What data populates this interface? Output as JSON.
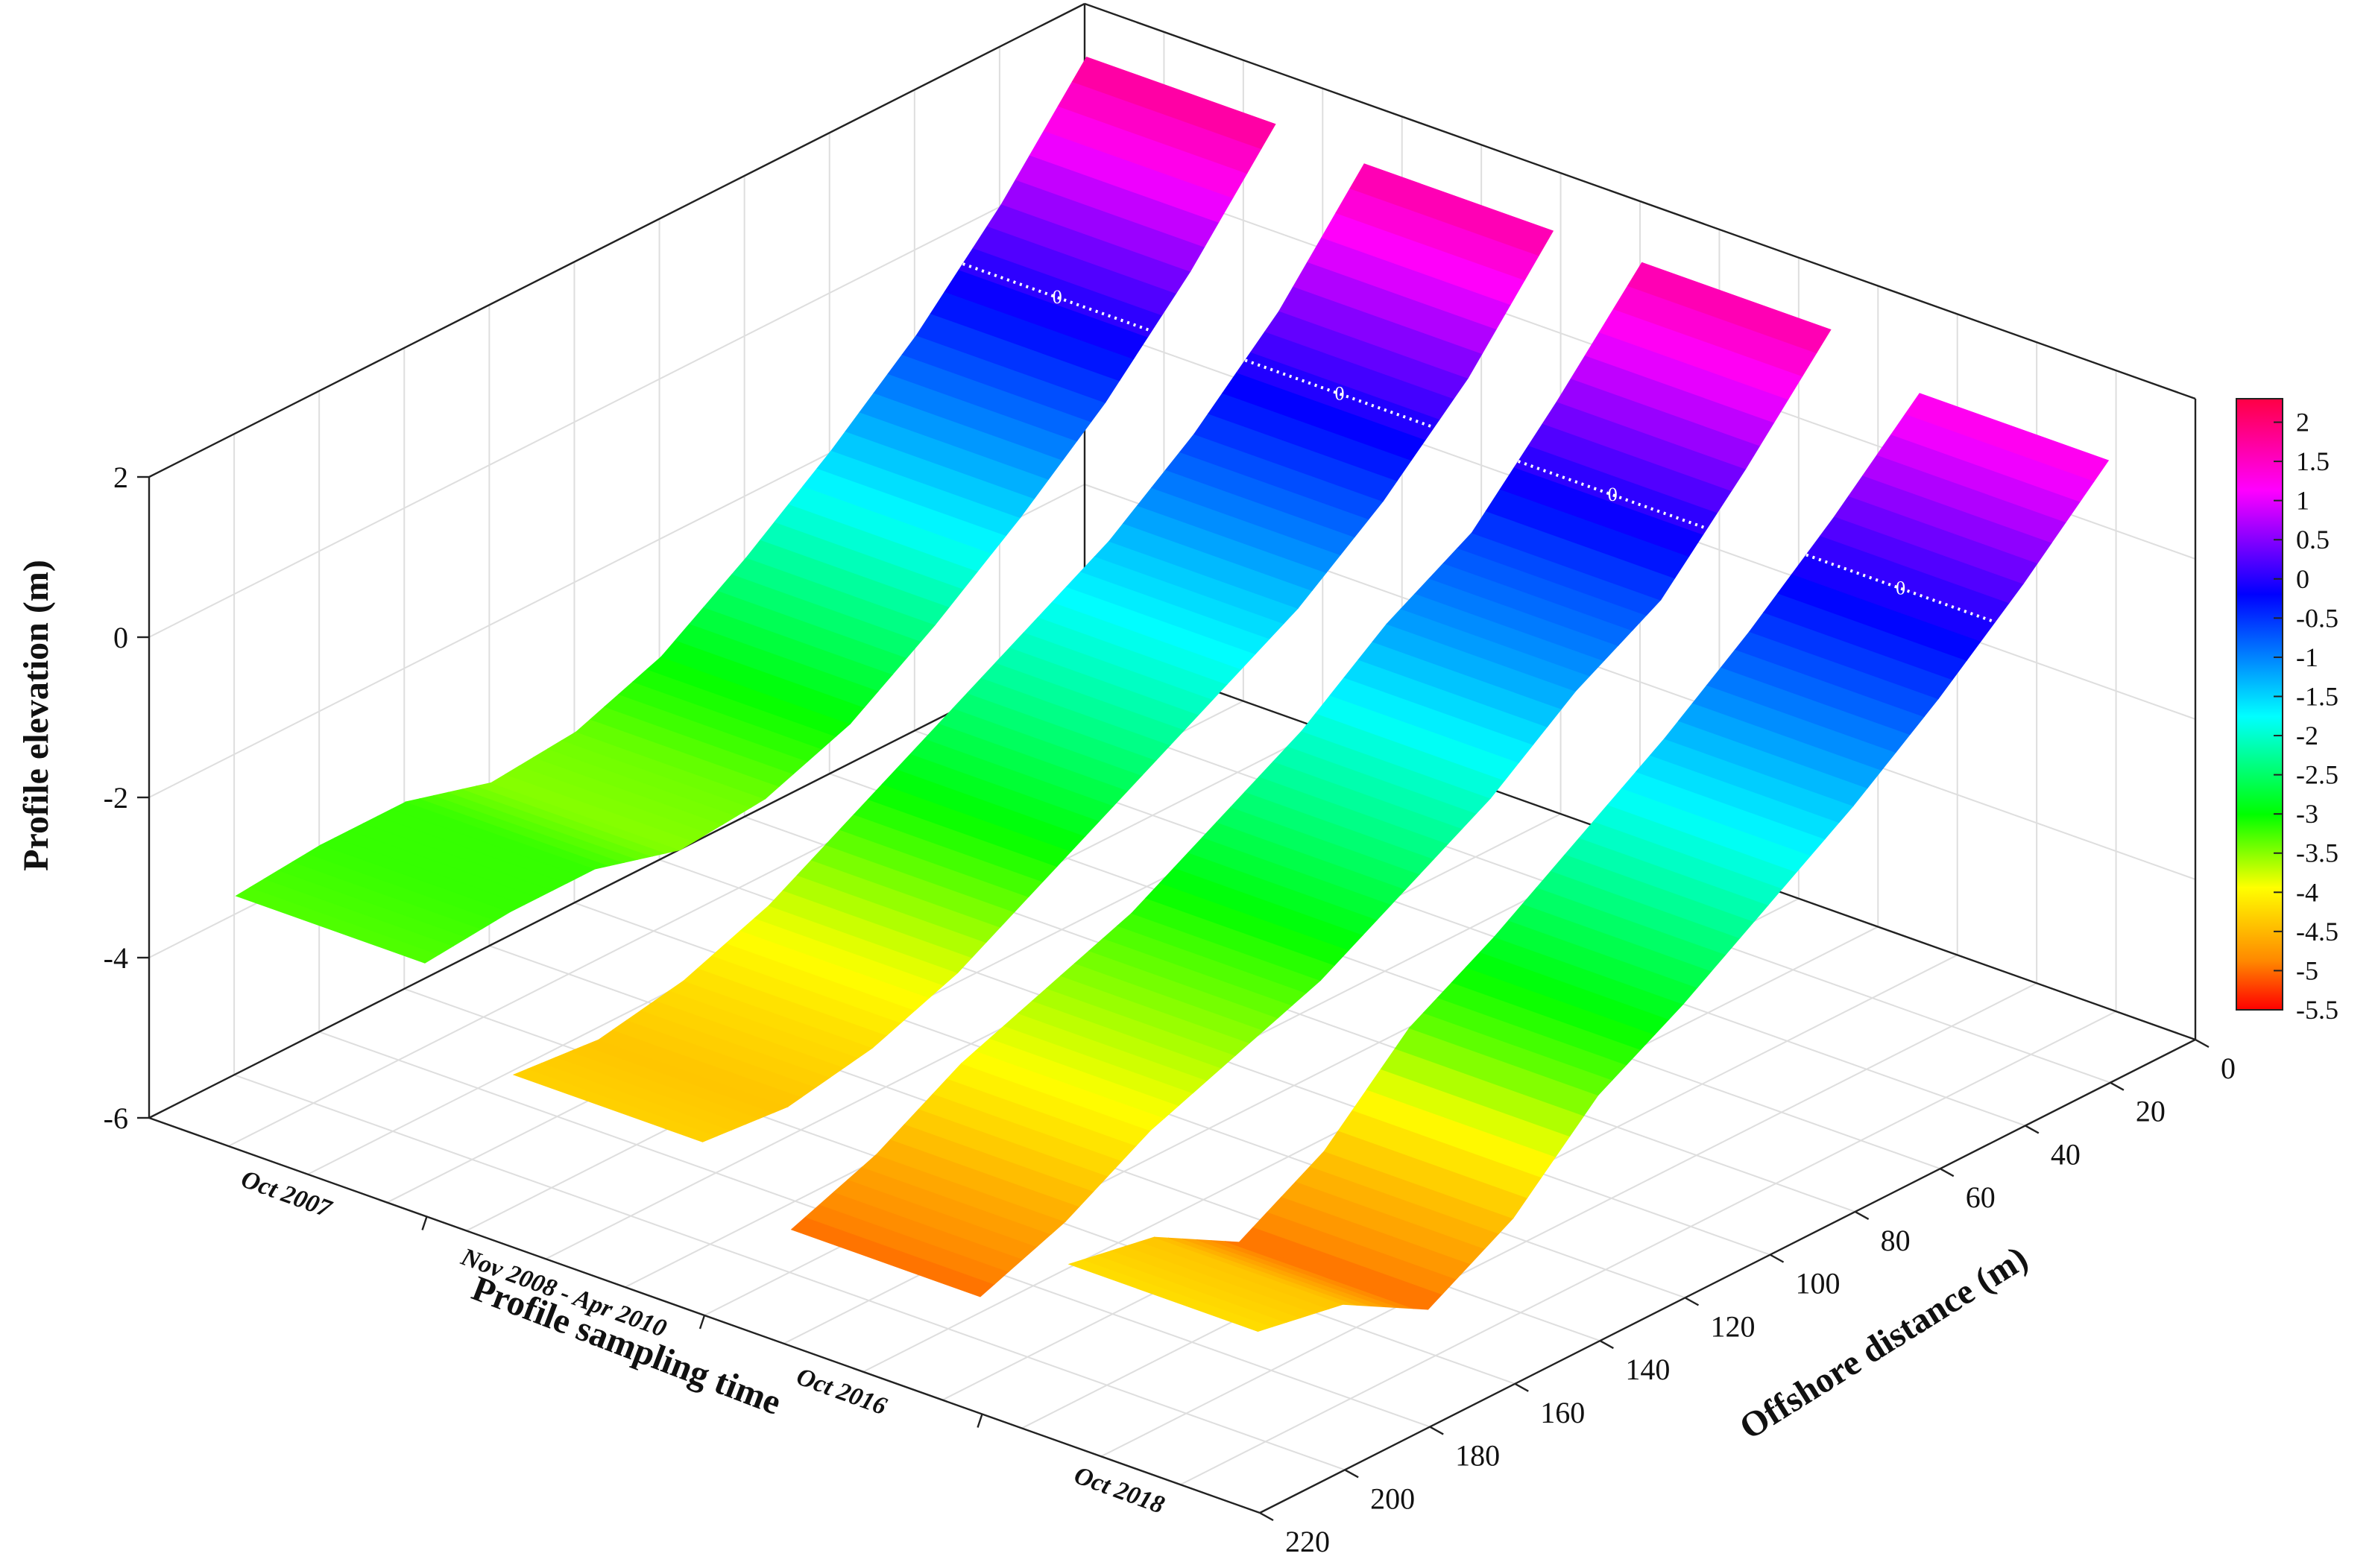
{
  "chart_data": {
    "type": "surface3d",
    "zlabel": "Profile elevation (m)",
    "xlabel": "Profile sampling time",
    "ylabel": "Offshore distance (m)",
    "z_ticks": [
      -6,
      -4,
      -2,
      0,
      2
    ],
    "zlim": [
      -6,
      2
    ],
    "y_ticks": [
      0,
      20,
      40,
      60,
      80,
      100,
      120,
      140,
      160,
      180,
      200,
      220
    ],
    "ylim": [
      0,
      220
    ],
    "categories": [
      "Oct 2007",
      "Nov 2008 - Apr 2010",
      "Oct 2016",
      "Oct 2018"
    ],
    "grid": true,
    "colormap": "hsv",
    "colorbar": {
      "ticks": [
        2,
        1.5,
        1,
        0.5,
        0,
        -0.5,
        -1,
        -1.5,
        -2,
        -2.5,
        -3,
        -3.5,
        -4,
        -4.5,
        -5,
        -5.5
      ],
      "tick_labels": [
        "2",
        "1.5",
        "1",
        "0.5",
        "0",
        "-0.5",
        "-1",
        "-1.5",
        "-2",
        "-2.5",
        "-3",
        "-3.5",
        "-4",
        "-4.5",
        "-5",
        "-5.5"
      ],
      "range": [
        -5.5,
        2.3
      ],
      "stops": [
        "#ff0000",
        "#ff8800",
        "#ffff00",
        "#00ff00",
        "#00ffff",
        "#0000ff",
        "#ff00ff",
        "#ff0044"
      ]
    },
    "zero_contour_label": "0",
    "series": [
      {
        "offshore": [
          10,
          30,
          50,
          70,
          90,
          110,
          130,
          150,
          170,
          190,
          210
        ],
        "elevation": [
          1.8,
          0.5,
          -0.6,
          -1.5,
          -2.3,
          -3.0,
          -3.4,
          -3.5,
          -3.2,
          -3.2,
          -3.3
        ]
      },
      {
        "offshore": [
          10,
          30,
          50,
          70,
          90,
          110,
          130,
          150,
          170,
          190,
          210
        ],
        "elevation": [
          1.7,
          0.4,
          -0.6,
          -1.4,
          -2.0,
          -2.6,
          -3.2,
          -3.8,
          -4.2,
          -4.4,
          -4.3
        ]
      },
      {
        "offshore": [
          10,
          30,
          50,
          70,
          90,
          110,
          130,
          150,
          170,
          190,
          210
        ],
        "elevation": [
          1.7,
          0.5,
          -0.6,
          -1.2,
          -2.0,
          -2.6,
          -3.2,
          -3.6,
          -4.0,
          -4.6,
          -5.0
        ]
      },
      {
        "offshore": [
          10,
          30,
          50,
          70,
          90,
          110,
          130,
          150,
          170,
          190,
          210
        ],
        "elevation": [
          1.3,
          0.3,
          -0.6,
          -1.4,
          -2.1,
          -2.8,
          -3.4,
          -4.4,
          -5.0,
          -4.4,
          -4.2
        ]
      }
    ]
  }
}
